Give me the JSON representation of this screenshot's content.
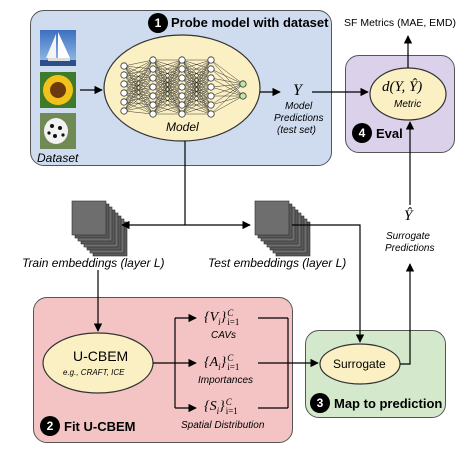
{
  "probe": {
    "step": "1",
    "title": "Probe model with dataset",
    "model_label": "Model",
    "dataset_label": "Dataset",
    "output_symbol": "Y",
    "predictions_label": [
      "Model",
      "Predictions",
      "(test set)"
    ]
  },
  "eval": {
    "step": "4",
    "title": "Eval",
    "metric_formula": "d(Y, Ŷ)",
    "metric_label": "Metric",
    "metrics_label": "SF Metrics (MAE, EMD)"
  },
  "embeddings": {
    "train_label": "Train embeddings (layer L)",
    "test_label": "Test embeddings (layer L)"
  },
  "surrogate_output": {
    "symbol": "Ŷ",
    "label": [
      "Surrogate",
      "Predictions"
    ]
  },
  "fit": {
    "step": "2",
    "title": "Fit U-CBEM",
    "ucbem_title": "U-CBEM",
    "ucbem_examples": "e.g., CRAFT, ICE",
    "items": [
      {
        "base": "{V",
        "sub": "i",
        "close": "}",
        "sup": "C",
        "lower": "i=1",
        "label": "CAVs"
      },
      {
        "base": "{A",
        "sub": "i",
        "close": "}",
        "sup": "C",
        "lower": "i=1",
        "label": "Importances"
      },
      {
        "base": "{S",
        "sub": "i",
        "close": "}",
        "sup": "C",
        "lower": "i=1",
        "label": "Spatial Distribution"
      }
    ]
  },
  "map": {
    "step": "3",
    "title": "Map to prediction",
    "surrogate_label": "Surrogate"
  },
  "colors": {
    "probe_bg": "#cfdcef",
    "eval_bg": "#dcd1ea",
    "fit_bg": "#f4c4c4",
    "map_bg": "#d4e8cc",
    "ellipse_bg": "#fbf0c4"
  }
}
